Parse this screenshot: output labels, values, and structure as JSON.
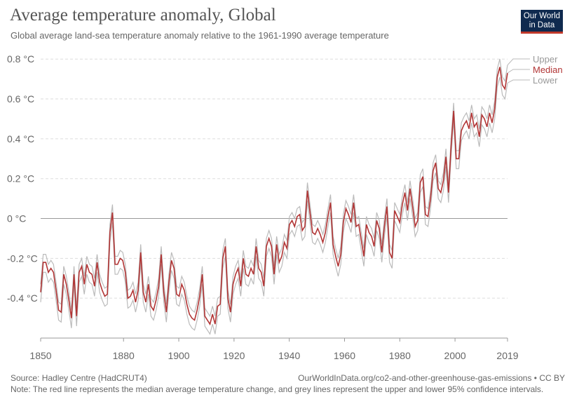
{
  "header": {
    "title": "Average temperature anomaly, Global",
    "subtitle": "Global average land-sea temperature anomaly relative to the 1961-1990 average temperature"
  },
  "logo": {
    "line1": "Our World",
    "line2": "in Data",
    "colors": {
      "background": "#0f2a4f",
      "accent": "#c0392b"
    }
  },
  "footer": {
    "source": "Source: Hadley Centre (HadCRUT4)",
    "url": "OurWorldInData.org/co2-and-other-greenhouse-gas-emissions • CC BY",
    "note": "Note: The red line represents the median average temperature change, and grey lines represent the upper and lower 95% confidence intervals."
  },
  "chart_data": {
    "type": "line",
    "title": "Average temperature anomaly, Global",
    "xlabel": "",
    "ylabel": "",
    "xlim": [
      1850,
      2019
    ],
    "ylim": [
      -0.6,
      0.85
    ],
    "grid": true,
    "legend_position": "right-end-of-lines",
    "x_ticks": [
      1850,
      1880,
      1900,
      1920,
      1940,
      1960,
      1980,
      2000,
      2019
    ],
    "x_tick_labels": [
      "1850",
      "1880",
      "1900",
      "1920",
      "1940",
      "1960",
      "1980",
      "2000",
      "2019"
    ],
    "y_ticks": [
      -0.4,
      -0.2,
      0,
      0.2,
      0.4,
      0.6,
      0.8
    ],
    "y_tick_labels": [
      "-0.4 °C",
      "-0.2 °C",
      "0 °C",
      "0.2 °C",
      "0.4 °C",
      "0.6 °C",
      "0.8 °C"
    ],
    "x_start": 1850,
    "colors": {
      "Median": "#b13535",
      "Upper": "#bbbbbb",
      "Lower": "#bbbbbb",
      "grid": "#dddddd",
      "zero_line": "#999999"
    },
    "series": [
      {
        "name": "Median",
        "values": [
          -0.37,
          -0.22,
          -0.22,
          -0.27,
          -0.25,
          -0.27,
          -0.36,
          -0.46,
          -0.47,
          -0.28,
          -0.33,
          -0.41,
          -0.5,
          -0.28,
          -0.49,
          -0.27,
          -0.24,
          -0.33,
          -0.23,
          -0.27,
          -0.28,
          -0.34,
          -0.22,
          -0.32,
          -0.36,
          -0.39,
          -0.38,
          -0.07,
          0.03,
          -0.23,
          -0.23,
          -0.2,
          -0.21,
          -0.27,
          -0.4,
          -0.39,
          -0.36,
          -0.42,
          -0.36,
          -0.17,
          -0.37,
          -0.42,
          -0.33,
          -0.44,
          -0.46,
          -0.41,
          -0.34,
          -0.18,
          -0.37,
          -0.47,
          -0.32,
          -0.21,
          -0.25,
          -0.38,
          -0.39,
          -0.33,
          -0.36,
          -0.43,
          -0.48,
          -0.5,
          -0.51,
          -0.46,
          -0.39,
          -0.28,
          -0.49,
          -0.51,
          -0.53,
          -0.48,
          -0.53,
          -0.44,
          -0.43,
          -0.2,
          -0.14,
          -0.4,
          -0.47,
          -0.33,
          -0.28,
          -0.25,
          -0.34,
          -0.2,
          -0.28,
          -0.29,
          -0.25,
          -0.28,
          -0.14,
          -0.25,
          -0.27,
          -0.34,
          -0.14,
          -0.1,
          -0.14,
          -0.28,
          -0.13,
          -0.22,
          -0.19,
          -0.12,
          -0.15,
          -0.03,
          -0.01,
          -0.04,
          0.01,
          0.02,
          -0.06,
          -0.04,
          0.14,
          0.03,
          -0.07,
          -0.08,
          -0.05,
          -0.08,
          -0.12,
          -0.07,
          0.01,
          0.08,
          -0.13,
          -0.19,
          -0.24,
          -0.18,
          -0.02,
          0.05,
          0.02,
          -0.02,
          0.08,
          -0.04,
          -0.03,
          -0.11,
          -0.19,
          -0.03,
          -0.07,
          -0.09,
          -0.14,
          -0.01,
          -0.05,
          -0.17,
          -0.04,
          0.06,
          -0.17,
          -0.2,
          0.04,
          0.01,
          -0.02,
          0.07,
          0.13,
          0.04,
          0.15,
          0.06,
          -0.04,
          -0.01,
          0.18,
          0.21,
          0.02,
          0.01,
          0.1,
          0.24,
          0.28,
          0.15,
          0.13,
          0.19,
          0.31,
          0.13,
          0.36,
          0.54,
          0.3,
          0.3,
          0.44,
          0.47,
          0.49,
          0.45,
          0.53,
          0.46,
          0.48,
          0.41,
          0.52,
          0.5,
          0.46,
          0.53,
          0.48,
          0.55,
          0.71,
          0.76,
          0.67,
          0.65,
          0.73
        ]
      },
      {
        "name": "Upper",
        "offset": 0.04
      },
      {
        "name": "Lower",
        "offset": -0.05
      }
    ]
  }
}
